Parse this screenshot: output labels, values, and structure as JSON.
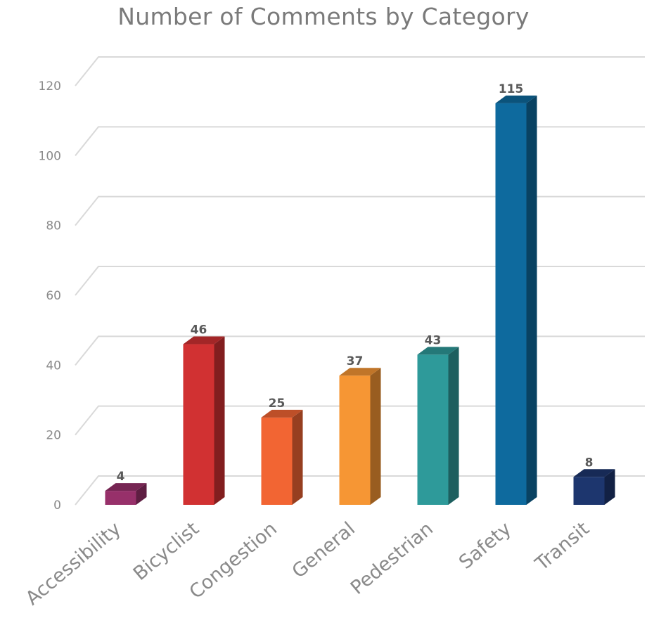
{
  "chart_data": {
    "type": "bar",
    "title": "Number of Comments by Category",
    "xlabel": "",
    "ylabel": "",
    "categories": [
      "Accessibility",
      "Bicyclist",
      "Congestion",
      "General",
      "Pedestrian",
      "Safety",
      "Transit"
    ],
    "values": [
      4,
      46,
      25,
      37,
      43,
      115,
      8
    ],
    "colors": [
      "#97306a",
      "#d13132",
      "#f26533",
      "#f69634",
      "#2e9a9a",
      "#0e6a9e",
      "#1d366e"
    ],
    "ylim": [
      0,
      120
    ],
    "yticks": [
      0,
      20,
      40,
      60,
      80,
      100,
      120
    ],
    "grid": true,
    "legend": "none",
    "style": "3d-column"
  }
}
